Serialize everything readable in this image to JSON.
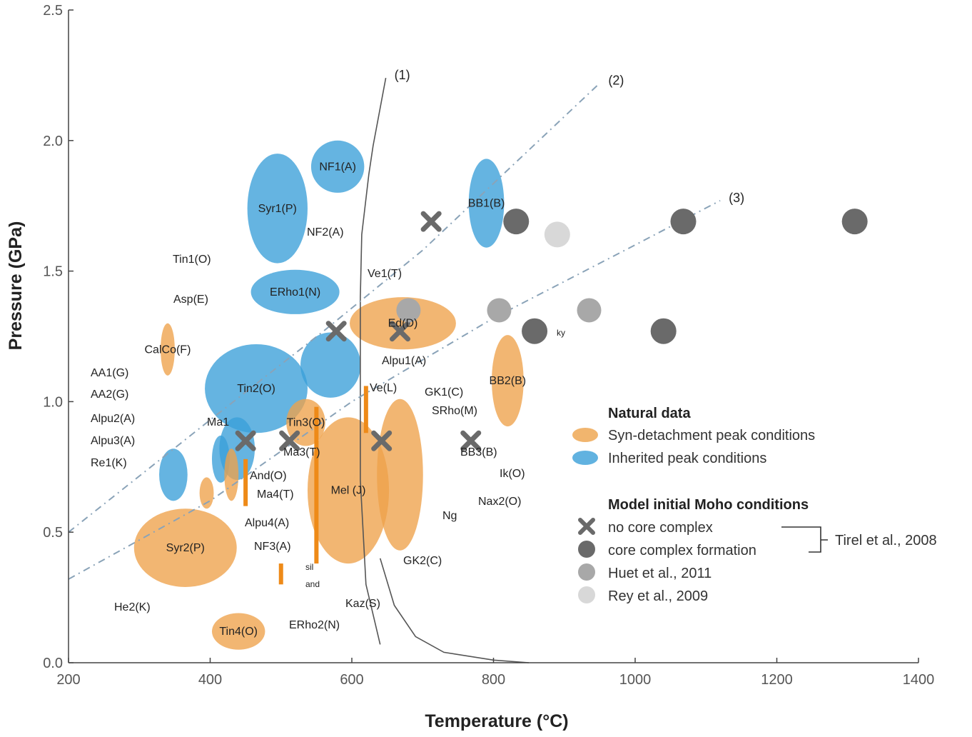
{
  "chart_data": {
    "type": "scatter",
    "xlabel": "Temperature (°C)",
    "ylabel": "Pressure (GPa)",
    "xlim": [
      200,
      1400
    ],
    "ylim": [
      0,
      2.5
    ],
    "xticks": [
      "200",
      "400",
      "600",
      "800",
      "1000",
      "1200",
      "1400"
    ],
    "yticks": [
      "0.0",
      "0.5",
      "1.0",
      "1.5",
      "2.0",
      "2.5"
    ],
    "colors": {
      "syn": "#eea24a",
      "inherited": "#3a9fd8",
      "tirel": "#6a6a6a",
      "huet": "#a8a8a8",
      "rey": "#d8d8d8",
      "bar": "#ee8a18"
    },
    "inherited_regions": [
      {
        "label": "Syr1(P)",
        "t": 495,
        "p": 1.74,
        "w": 85,
        "h": 0.42
      },
      {
        "label": "NF1(A)",
        "t": 580,
        "p": 1.9,
        "w": 75,
        "h": 0.2
      },
      {
        "label": "BB1(B)",
        "t": 790,
        "p": 1.76,
        "w": 50,
        "h": 0.34
      },
      {
        "label": "ERho1(N)",
        "t": 520,
        "p": 1.42,
        "w": 125,
        "h": 0.17
      },
      {
        "label": "Tin2(O)",
        "t": 465,
        "p": 1.05,
        "w": 145,
        "h": 0.34
      },
      {
        "label": "",
        "t": 570,
        "p": 1.14,
        "w": 85,
        "h": 0.25
      },
      {
        "label": "",
        "t": 438,
        "p": 0.82,
        "w": 50,
        "h": 0.24
      },
      {
        "label": "",
        "t": 348,
        "p": 0.72,
        "w": 40,
        "h": 0.2
      },
      {
        "label": "",
        "t": 415,
        "p": 0.78,
        "w": 25,
        "h": 0.18
      }
    ],
    "syn_regions": [
      {
        "label": "Ed(D)",
        "t": 672,
        "p": 1.3,
        "w": 150,
        "h": 0.2
      },
      {
        "label": "BB2(B)",
        "t": 820,
        "p": 1.08,
        "w": 45,
        "h": 0.35
      },
      {
        "label": "CalCo(F)",
        "t": 340,
        "p": 1.2,
        "w": 20,
        "h": 0.2
      },
      {
        "label": "Tin3(O)",
        "t": 535,
        "p": 0.92,
        "w": 55,
        "h": 0.18
      },
      {
        "label": "Mel (J)",
        "t": 595,
        "p": 0.66,
        "w": 115,
        "h": 0.56
      },
      {
        "label": "",
        "t": 668,
        "p": 0.72,
        "w": 65,
        "h": 0.58
      },
      {
        "label": "",
        "t": 430,
        "p": 0.72,
        "w": 20,
        "h": 0.2
      },
      {
        "label": "",
        "t": 395,
        "p": 0.65,
        "w": 20,
        "h": 0.12
      },
      {
        "label": "Syr2(P)",
        "t": 365,
        "p": 0.44,
        "w": 145,
        "h": 0.3
      },
      {
        "label": "Tin4(O)",
        "t": 440,
        "p": 0.12,
        "w": 75,
        "h": 0.14
      }
    ],
    "model_points": [
      {
        "group": "no core complex",
        "t": 512,
        "p": 0.85
      },
      {
        "group": "no core complex",
        "t": 450,
        "p": 0.85
      },
      {
        "group": "no core complex",
        "t": 642,
        "p": 0.85
      },
      {
        "group": "no core complex",
        "t": 578,
        "p": 1.27
      },
      {
        "group": "no core complex",
        "t": 668,
        "p": 1.27
      },
      {
        "group": "no core complex",
        "t": 712,
        "p": 1.69
      },
      {
        "group": "no core complex",
        "t": 768,
        "p": 0.85
      },
      {
        "group": "core complex formation",
        "t": 832,
        "p": 1.69
      },
      {
        "group": "core complex formation",
        "t": 1068,
        "p": 1.69
      },
      {
        "group": "core complex formation",
        "t": 1310,
        "p": 1.69
      },
      {
        "group": "core complex formation",
        "t": 858,
        "p": 1.27
      },
      {
        "group": "core complex formation",
        "t": 1040,
        "p": 1.27
      },
      {
        "group": "Huet et al., 2011",
        "t": 808,
        "p": 1.35
      },
      {
        "group": "Huet et al., 2011",
        "t": 935,
        "p": 1.35
      },
      {
        "group": "Huet et al., 2011",
        "t": 680,
        "p": 1.35
      },
      {
        "group": "Rey et al., 2009",
        "t": 890,
        "p": 1.64
      }
    ],
    "bars": [
      {
        "t": 450,
        "p_min": 0.6,
        "p_max": 0.78
      },
      {
        "t": 550,
        "p_min": 0.38,
        "p_max": 0.98
      },
      {
        "t": 620,
        "p_min": 0.88,
        "p_max": 1.06
      },
      {
        "t": 500,
        "p_min": 0.3,
        "p_max": 0.38
      }
    ],
    "curves": [
      {
        "label": "(1)",
        "points": [
          [
            640,
            0.07
          ],
          [
            620,
            0.3
          ],
          [
            612,
            0.7
          ],
          [
            612,
            1.0
          ],
          [
            612,
            1.4
          ],
          [
            614,
            1.64
          ],
          [
            624,
            1.87
          ],
          [
            630,
            1.98
          ],
          [
            648,
            2.24
          ]
        ],
        "style": "solid"
      },
      {
        "label": "(2)",
        "points": [
          [
            200,
            0.5
          ],
          [
            400,
            0.93
          ],
          [
            560,
            1.27
          ],
          [
            700,
            1.58
          ],
          [
            950,
            2.22
          ]
        ],
        "style": "dashed"
      },
      {
        "label": "(3)",
        "points": [
          [
            200,
            0.32
          ],
          [
            400,
            0.62
          ],
          [
            600,
            1.0
          ],
          [
            800,
            1.32
          ],
          [
            1000,
            1.6
          ],
          [
            1120,
            1.77
          ]
        ],
        "style": "dashed"
      },
      {
        "label": "",
        "points": [
          [
            640,
            0.4
          ],
          [
            660,
            0.22
          ],
          [
            690,
            0.1
          ],
          [
            730,
            0.04
          ],
          [
            800,
            0.01
          ],
          [
            850,
            0.0
          ]
        ],
        "style": "solid"
      }
    ],
    "unplaced_labels": [
      "Ve1(T)",
      "Asp(E)",
      "NF2(A)",
      "Tin1(O)",
      "Alpu1(A)",
      "Ve(L)",
      "GK1(C)",
      "SRho(M)",
      "AA1(G)",
      "AA2(G)",
      "Alpu2(A)",
      "Alpu3(A)",
      "Re1(K)",
      "And(O)",
      "Ma4(T)",
      "Alpu4(A)",
      "NF3(A)",
      "He2(K)",
      "ERho2(N)",
      "Kaz(S)",
      "GK2(C)",
      "Ik(O)",
      "Nax2(O)",
      "Ng",
      "Ma3(T)",
      "Ma1",
      "BB3(B)",
      "ky",
      "sil",
      "and"
    ],
    "legend": {
      "natural_heading": "Natural data",
      "syn": "Syn-detachment peak conditions",
      "inherited": "Inherited peak conditions",
      "model_heading": "Model initial Moho conditions",
      "no_core": "no core complex",
      "core": "core complex formation",
      "huet": "Huet et al., 2011",
      "rey": "Rey et al., 2009",
      "tirel_ref": "Tirel et al., 2008"
    }
  }
}
